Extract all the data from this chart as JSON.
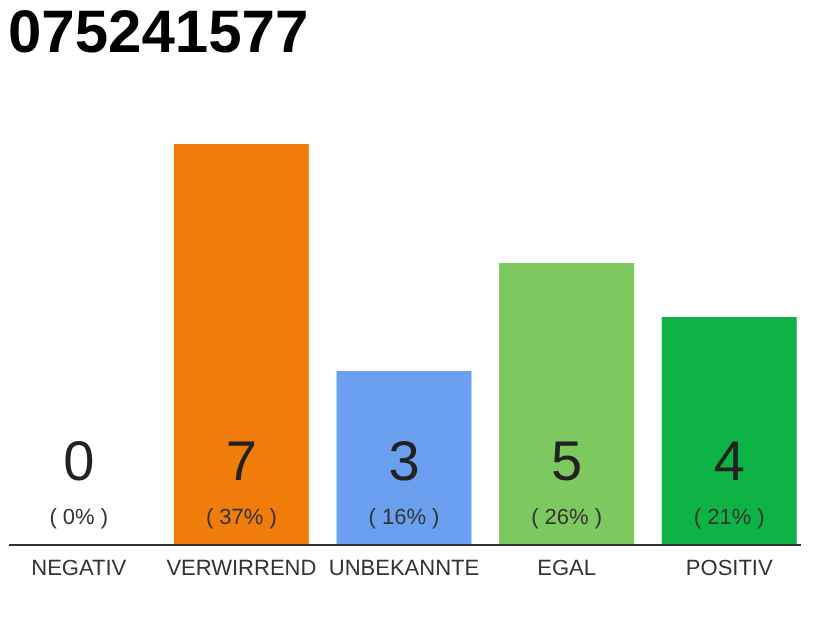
{
  "chart_data": {
    "type": "bar",
    "title": "075241577",
    "categories": [
      "NEGATIV",
      "VERWIRREND",
      "UNBEKANNTE",
      "EGAL",
      "POSITIV"
    ],
    "values": [
      0,
      37,
      16,
      26,
      21
    ],
    "colors": [
      "#eeeeee",
      "#f07c0c",
      "#6aa0ef",
      "#7ec95f",
      "#0db345"
    ],
    "value_labels": [
      "( 0% )",
      "( 37% )",
      "( 16% )",
      "( 26% )",
      "( 21% )"
    ],
    "annotations": [
      "0",
      "7",
      "3",
      "5",
      "4"
    ],
    "tick_labels": "x"
  }
}
